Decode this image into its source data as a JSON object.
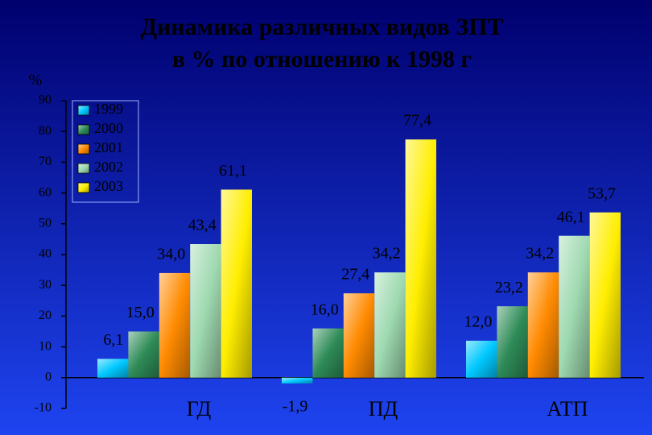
{
  "chart_data": {
    "type": "bar",
    "title": [
      "Динамика различных видов ЗПТ",
      "в % по отношению к 1998 г"
    ],
    "y_label": "%",
    "categories": [
      "ГД",
      "ПД",
      "АТП"
    ],
    "series": [
      {
        "name": "1999",
        "color": "#00c8ff",
        "values": [
          6.1,
          -1.9,
          12.0
        ],
        "value_labels": [
          "6,1",
          "-1,9",
          "12,0"
        ]
      },
      {
        "name": "2000",
        "color": "#2e8b57",
        "values": [
          15.0,
          16.0,
          23.2
        ],
        "value_labels": [
          "15,0",
          "16,0",
          "23,2"
        ]
      },
      {
        "name": "2001",
        "color": "#ff8a00",
        "values": [
          34.0,
          27.4,
          34.2
        ],
        "value_labels": [
          "34,0",
          "27,4",
          "34,2"
        ]
      },
      {
        "name": "2002",
        "color": "#9ed9b0",
        "values": [
          43.4,
          34.2,
          46.1
        ],
        "value_labels": [
          "43,4",
          "34,2",
          "46,1"
        ]
      },
      {
        "name": "2003",
        "color": "#ffee00",
        "values": [
          61.1,
          77.4,
          53.7
        ],
        "value_labels": [
          "61,1",
          "77,4",
          "53,7"
        ]
      }
    ],
    "ylim": [
      -10,
      90
    ],
    "yticks": [
      -10,
      0,
      10,
      20,
      30,
      40,
      50,
      60,
      70,
      80,
      90
    ]
  }
}
